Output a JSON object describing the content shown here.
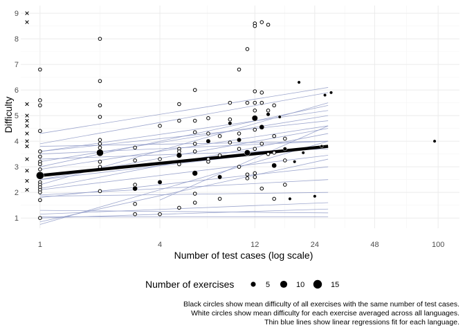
{
  "chart_data": {
    "type": "scatter",
    "xlabel": "Number of test cases (log scale)",
    "ylabel": "Difficulty",
    "x_scale": "log",
    "xlim": [
      0.8,
      128
    ],
    "ylim": [
      0.6,
      9.3
    ],
    "x_ticks": [
      1,
      4,
      12,
      24,
      48,
      100
    ],
    "y_ticks": [
      1,
      2,
      3,
      4,
      5,
      6,
      7,
      8,
      9
    ],
    "grid": true,
    "legend": {
      "title": "Number of exercises",
      "placement": "bottom",
      "entries": [
        {
          "label": "5",
          "n": 5
        },
        {
          "label": "10",
          "n": 10
        },
        {
          "label": "15",
          "n": 15
        }
      ]
    },
    "colors": {
      "line": "#8c96c6",
      "mean": "#000000",
      "point_fill": "#ffffff",
      "grid": "#ebebeb"
    },
    "captions": [
      "Black circles show mean difficulty of all exercises with the same number of test cases.",
      "White circles show mean difficulty for each exercise averaged across all languages.",
      "Thin blue lines show linear regressions fit for each language."
    ],
    "overall_fit": {
      "x": [
        1,
        28
      ],
      "y": [
        2.66,
        3.8
      ]
    },
    "language_fits": [
      {
        "x": [
          1,
          28
        ],
        "y": [
          2.15,
          4.3
        ]
      },
      {
        "x": [
          1,
          28
        ],
        "y": [
          2.3,
          5.5
        ]
      },
      {
        "x": [
          1,
          28
        ],
        "y": [
          3.6,
          5.2
        ]
      },
      {
        "x": [
          1,
          28
        ],
        "y": [
          3.9,
          5.9
        ]
      },
      {
        "x": [
          1,
          28
        ],
        "y": [
          4.3,
          6.1
        ]
      },
      {
        "x": [
          1,
          28
        ],
        "y": [
          1.3,
          1.2
        ]
      },
      {
        "x": [
          1,
          28
        ],
        "y": [
          1.0,
          1.35
        ]
      },
      {
        "x": [
          1,
          28
        ],
        "y": [
          1.05,
          1.05
        ]
      },
      {
        "x": [
          1,
          28
        ],
        "y": [
          1.9,
          2.5
        ]
      },
      {
        "x": [
          1,
          28
        ],
        "y": [
          2.9,
          4.6
        ]
      },
      {
        "x": [
          1,
          28
        ],
        "y": [
          3.2,
          5.0
        ]
      },
      {
        "x": [
          1,
          28
        ],
        "y": [
          2.5,
          3.8
        ]
      },
      {
        "x": [
          1,
          28
        ],
        "y": [
          3.5,
          4.0
        ]
      },
      {
        "x": [
          1,
          28
        ],
        "y": [
          0.85,
          3.3
        ]
      },
      {
        "x": [
          1,
          28
        ],
        "y": [
          0.75,
          4.0
        ]
      },
      {
        "x": [
          1,
          28
        ],
        "y": [
          1.8,
          3.0
        ]
      },
      {
        "x": [
          1,
          28
        ],
        "y": [
          3.6,
          4.8
        ]
      },
      {
        "x": [
          1,
          28
        ],
        "y": [
          3.0,
          5.4
        ]
      },
      {
        "x": [
          1,
          28
        ],
        "y": [
          2.1,
          3.45
        ]
      },
      {
        "x": [
          1,
          28
        ],
        "y": [
          2.5,
          4.5
        ]
      },
      {
        "x": [
          1,
          28
        ],
        "y": [
          1.15,
          1.6
        ]
      },
      {
        "x": [
          1,
          28
        ],
        "y": [
          3.8,
          4.0
        ]
      },
      {
        "x": [
          4,
          28
        ],
        "y": [
          1.7,
          4.6
        ]
      },
      {
        "x": [
          1,
          28
        ],
        "y": [
          1.85,
          2.0
        ]
      },
      {
        "x": [
          1,
          28
        ],
        "y": [
          3.3,
          3.7
        ]
      }
    ],
    "means": [
      {
        "x": 1,
        "y": 2.66,
        "n": 12
      },
      {
        "x": 2,
        "y": 3.55,
        "n": 10
      },
      {
        "x": 3,
        "y": 2.15,
        "n": 5
      },
      {
        "x": 4,
        "y": 2.4,
        "n": 4
      },
      {
        "x": 5,
        "y": 3.45,
        "n": 6
      },
      {
        "x": 6,
        "y": 2.75,
        "n": 6
      },
      {
        "x": 7,
        "y": 4.0,
        "n": 4
      },
      {
        "x": 8,
        "y": 2.6,
        "n": 4
      },
      {
        "x": 9,
        "y": 4.7,
        "n": 3
      },
      {
        "x": 10,
        "y": 4.05,
        "n": 4
      },
      {
        "x": 11,
        "y": 3.55,
        "n": 7
      },
      {
        "x": 12,
        "y": 4.9,
        "n": 7
      },
      {
        "x": 13,
        "y": 4.55,
        "n": 5
      },
      {
        "x": 14,
        "y": 5.05,
        "n": 3
      },
      {
        "x": 15,
        "y": 3.05,
        "n": 5
      },
      {
        "x": 16,
        "y": 4.95,
        "n": 2
      },
      {
        "x": 17,
        "y": 3.7,
        "n": 3
      },
      {
        "x": 18,
        "y": 1.75,
        "n": 2
      },
      {
        "x": 19,
        "y": 3.2,
        "n": 2
      },
      {
        "x": 20,
        "y": 6.3,
        "n": 2
      },
      {
        "x": 21,
        "y": 3.55,
        "n": 2
      },
      {
        "x": 24,
        "y": 1.85,
        "n": 2
      },
      {
        "x": 26,
        "y": 3.8,
        "n": 2
      },
      {
        "x": 27,
        "y": 5.8,
        "n": 2
      },
      {
        "x": 29,
        "y": 5.9,
        "n": 2
      },
      {
        "x": 96,
        "y": 4.0,
        "n": 2
      }
    ],
    "exercises": [
      {
        "x": 1,
        "y": 6.8
      },
      {
        "x": 1,
        "y": 5.6
      },
      {
        "x": 1,
        "y": 5.4
      },
      {
        "x": 1,
        "y": 4.4
      },
      {
        "x": 1,
        "y": 3.6
      },
      {
        "x": 1,
        "y": 3.4
      },
      {
        "x": 1,
        "y": 3.2
      },
      {
        "x": 1,
        "y": 3.1
      },
      {
        "x": 1,
        "y": 2.9
      },
      {
        "x": 1,
        "y": 2.7
      },
      {
        "x": 1,
        "y": 2.6
      },
      {
        "x": 1,
        "y": 2.4
      },
      {
        "x": 1,
        "y": 2.3
      },
      {
        "x": 1,
        "y": 2.2
      },
      {
        "x": 1,
        "y": 2.1
      },
      {
        "x": 1,
        "y": 2.0
      },
      {
        "x": 1,
        "y": 1.7
      },
      {
        "x": 1,
        "y": 1.0
      },
      {
        "x": 2,
        "y": 8.0
      },
      {
        "x": 2,
        "y": 6.35
      },
      {
        "x": 2,
        "y": 5.4
      },
      {
        "x": 2,
        "y": 4.95
      },
      {
        "x": 2,
        "y": 4.05
      },
      {
        "x": 2,
        "y": 3.9
      },
      {
        "x": 2,
        "y": 3.75
      },
      {
        "x": 2,
        "y": 3.2
      },
      {
        "x": 2,
        "y": 3.0
      },
      {
        "x": 2,
        "y": 2.05
      },
      {
        "x": 3,
        "y": 3.75
      },
      {
        "x": 3,
        "y": 3.25
      },
      {
        "x": 3,
        "y": 2.3
      },
      {
        "x": 3,
        "y": 1.55
      },
      {
        "x": 3,
        "y": 1.15
      },
      {
        "x": 4,
        "y": 4.6
      },
      {
        "x": 4,
        "y": 3.3
      },
      {
        "x": 4,
        "y": 1.15
      },
      {
        "x": 5,
        "y": 5.45
      },
      {
        "x": 5,
        "y": 4.8
      },
      {
        "x": 5,
        "y": 3.7
      },
      {
        "x": 5,
        "y": 3.6
      },
      {
        "x": 5,
        "y": 3.1
      },
      {
        "x": 5,
        "y": 1.4
      },
      {
        "x": 6,
        "y": 6.0
      },
      {
        "x": 6,
        "y": 4.8
      },
      {
        "x": 6,
        "y": 4.35
      },
      {
        "x": 6,
        "y": 3.9
      },
      {
        "x": 6,
        "y": 3.6
      },
      {
        "x": 6,
        "y": 1.95
      },
      {
        "x": 6,
        "y": 1.6
      },
      {
        "x": 7,
        "y": 4.9
      },
      {
        "x": 7,
        "y": 4.3
      },
      {
        "x": 7,
        "y": 3.3
      },
      {
        "x": 7,
        "y": 3.2
      },
      {
        "x": 8,
        "y": 4.2
      },
      {
        "x": 8,
        "y": 3.45
      },
      {
        "x": 8,
        "y": 1.75
      },
      {
        "x": 9,
        "y": 5.5
      },
      {
        "x": 9,
        "y": 4.85
      },
      {
        "x": 9,
        "y": 3.95
      },
      {
        "x": 10,
        "y": 6.8
      },
      {
        "x": 10,
        "y": 4.3
      },
      {
        "x": 10,
        "y": 3.7
      },
      {
        "x": 10,
        "y": 3.0
      },
      {
        "x": 11,
        "y": 7.6
      },
      {
        "x": 11,
        "y": 5.5
      },
      {
        "x": 11,
        "y": 2.7
      },
      {
        "x": 11,
        "y": 2.55
      },
      {
        "x": 12,
        "y": 8.6
      },
      {
        "x": 12,
        "y": 8.5
      },
      {
        "x": 12,
        "y": 5.95
      },
      {
        "x": 12,
        "y": 5.5
      },
      {
        "x": 12,
        "y": 5.2
      },
      {
        "x": 12,
        "y": 4.45
      },
      {
        "x": 12,
        "y": 3.7
      },
      {
        "x": 12,
        "y": 2.75
      },
      {
        "x": 12,
        "y": 2.6
      },
      {
        "x": 13,
        "y": 8.65
      },
      {
        "x": 13,
        "y": 5.9
      },
      {
        "x": 13,
        "y": 5.5
      },
      {
        "x": 13,
        "y": 3.9
      },
      {
        "x": 13,
        "y": 2.15
      },
      {
        "x": 14,
        "y": 8.55
      },
      {
        "x": 14,
        "y": 5.2
      },
      {
        "x": 14,
        "y": 3.5
      },
      {
        "x": 15,
        "y": 5.4
      },
      {
        "x": 15,
        "y": 4.2
      },
      {
        "x": 15,
        "y": 3.55
      },
      {
        "x": 15,
        "y": 1.75
      },
      {
        "x": 17,
        "y": 4.1
      },
      {
        "x": 17,
        "y": 3.25
      },
      {
        "x": 17,
        "y": 2.3
      }
    ],
    "missing_markers": [
      {
        "x": 0.86,
        "y": 9.0
      },
      {
        "x": 0.86,
        "y": 8.65
      },
      {
        "x": 0.86,
        "y": 5.45
      },
      {
        "x": 0.86,
        "y": 5.0
      },
      {
        "x": 0.86,
        "y": 4.8
      },
      {
        "x": 0.86,
        "y": 4.6
      },
      {
        "x": 0.86,
        "y": 4.3
      },
      {
        "x": 0.86,
        "y": 4.0
      },
      {
        "x": 0.86,
        "y": 3.8
      },
      {
        "x": 0.86,
        "y": 3.3
      },
      {
        "x": 0.86,
        "y": 2.85
      },
      {
        "x": 0.86,
        "y": 2.45
      },
      {
        "x": 0.86,
        "y": 2.1
      }
    ]
  }
}
